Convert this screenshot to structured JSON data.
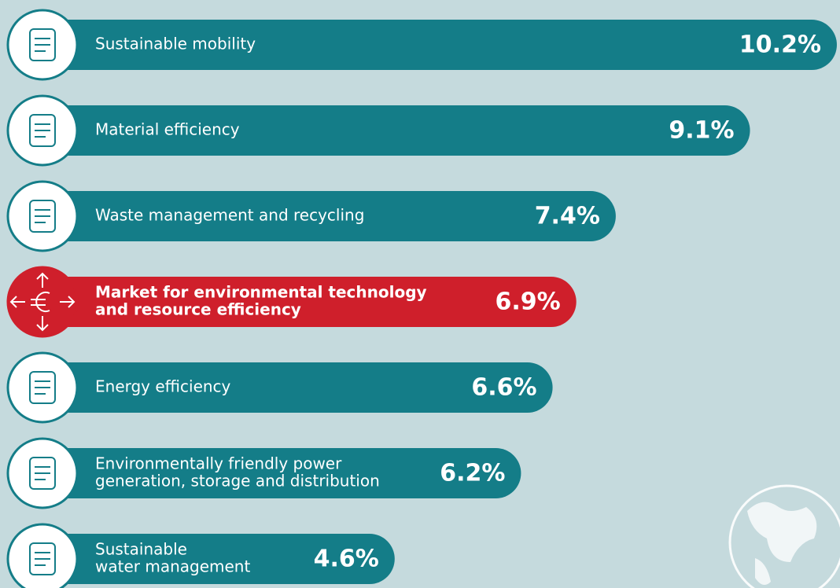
{
  "chart_data": {
    "type": "bar",
    "categories": [
      [
        "Sustainable mobility"
      ],
      [
        "Material efficiency"
      ],
      [
        "Waste management and recycling"
      ],
      [
        "Market for environmental technology",
        "and resource efficiency"
      ],
      [
        "Energy efficiency"
      ],
      [
        "Environmentally friendly power",
        "generation, storage and distribution"
      ],
      [
        "Sustainable",
        "water management"
      ]
    ],
    "values": [
      10.2,
      9.1,
      7.4,
      6.9,
      6.6,
      6.2,
      4.6
    ],
    "value_labels": [
      "10.2%",
      "9.1%",
      "7.4%",
      "6.9%",
      "6.6%",
      "6.2%",
      "4.6%"
    ],
    "color": "#147d88",
    "highlight_color": "#cf1f2b",
    "highlight": 3
  }
}
